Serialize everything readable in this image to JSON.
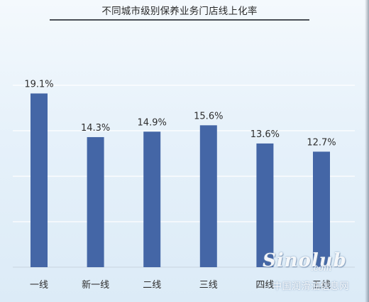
{
  "title": "不同城市级别保养业务门店线上化率",
  "chart_data": {
    "type": "bar",
    "categories": [
      "一线",
      "新一线",
      "二线",
      "三线",
      "四线",
      "五线"
    ],
    "values": [
      19.1,
      14.3,
      14.9,
      15.6,
      13.6,
      12.7
    ],
    "value_labels": [
      "19.1%",
      "14.3%",
      "14.9%",
      "15.6%",
      "13.6%",
      "12.7%"
    ],
    "ylim": [
      0,
      20
    ],
    "gridlines": [
      0,
      5,
      10,
      15,
      20
    ],
    "grid": true,
    "legend": "none",
    "bar_color": "#4466a6",
    "grid_color": "#ffffff"
  },
  "watermark": {
    "logo": "Sinolub",
    "dotcom": ".com",
    "caption": "中国润滑油信息网"
  }
}
